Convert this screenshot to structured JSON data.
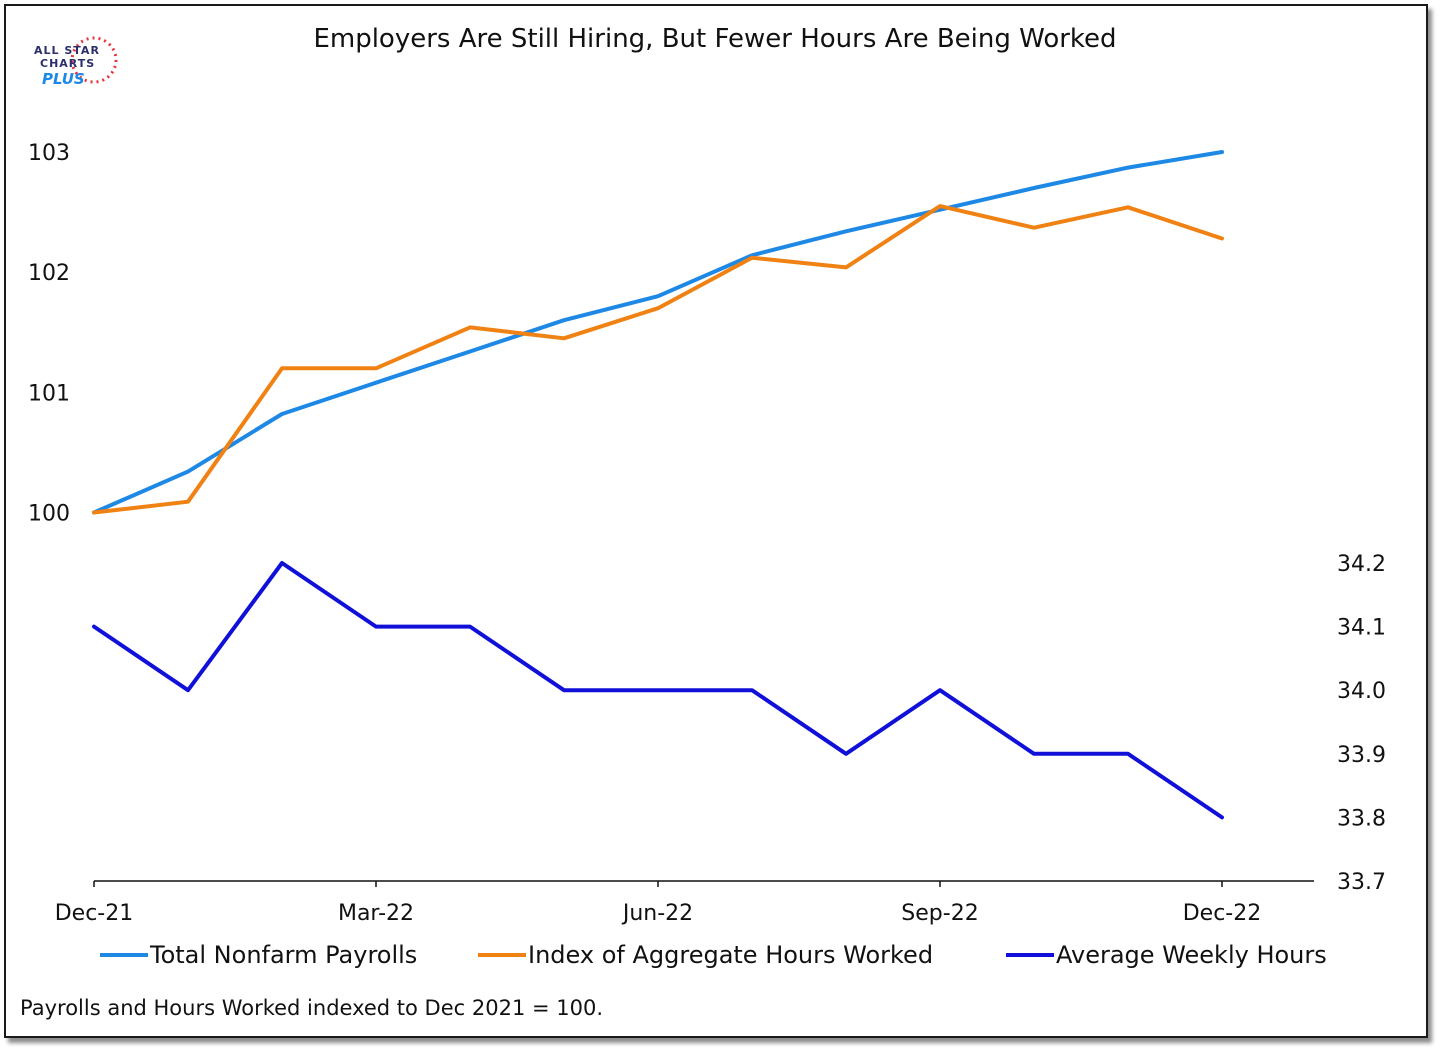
{
  "logo": {
    "line1": "ALL STAR",
    "line2": "CHARTS",
    "line3": "PLUS"
  },
  "footnote": "Payrolls and Hours Worked indexed to Dec 2021 = 100.",
  "colors": {
    "payrolls": "#1e88e5",
    "aggregate": "#f08214",
    "weekly": "#1010d8",
    "axis": "#111111"
  },
  "chart_data": {
    "type": "line",
    "title": "Employers Are Still Hiring, But Fewer Hours Are Being Worked",
    "x": [
      "Dec-21",
      "Jan-22",
      "Feb-22",
      "Mar-22",
      "Apr-22",
      "May-22",
      "Jun-22",
      "Jul-22",
      "Aug-22",
      "Sep-22",
      "Oct-22",
      "Nov-22",
      "Dec-22"
    ],
    "x_tick_labels": [
      "Dec-21",
      "Mar-22",
      "Jun-22",
      "Sep-22",
      "Dec-22"
    ],
    "left_axis": {
      "ticks": [
        "100",
        "101",
        "102",
        "103"
      ],
      "tick_values": [
        100,
        101,
        102,
        103
      ],
      "ylim": [
        96.95,
        103.5
      ]
    },
    "right_axis": {
      "ticks": [
        "33.7",
        "33.8",
        "33.9",
        "34.0",
        "34.1",
        "34.2"
      ],
      "tick_values": [
        33.7,
        33.8,
        33.9,
        34.0,
        34.1,
        34.2
      ],
      "ylim": [
        33.7,
        34.8
      ]
    },
    "series": [
      {
        "name": "Total Nonfarm Payrolls",
        "axis": "left",
        "color": "#1e88e5",
        "values": [
          100.0,
          100.34,
          100.82,
          101.08,
          101.34,
          101.6,
          101.8,
          102.14,
          102.34,
          102.52,
          102.7,
          102.87,
          103.0
        ]
      },
      {
        "name": "Index of Aggregate Hours Worked",
        "axis": "left",
        "color": "#f08214",
        "values": [
          100.0,
          100.09,
          101.2,
          101.2,
          101.54,
          101.45,
          101.7,
          102.12,
          102.04,
          102.55,
          102.37,
          102.54,
          102.28
        ]
      },
      {
        "name": "Average Weekly Hours",
        "axis": "right",
        "color": "#1010d8",
        "values": [
          34.1,
          34.0,
          34.2,
          34.1,
          34.1,
          34.0,
          34.0,
          34.0,
          33.9,
          34.0,
          33.9,
          33.9,
          33.8
        ]
      }
    ],
    "legend": "bottom",
    "grid": false
  }
}
